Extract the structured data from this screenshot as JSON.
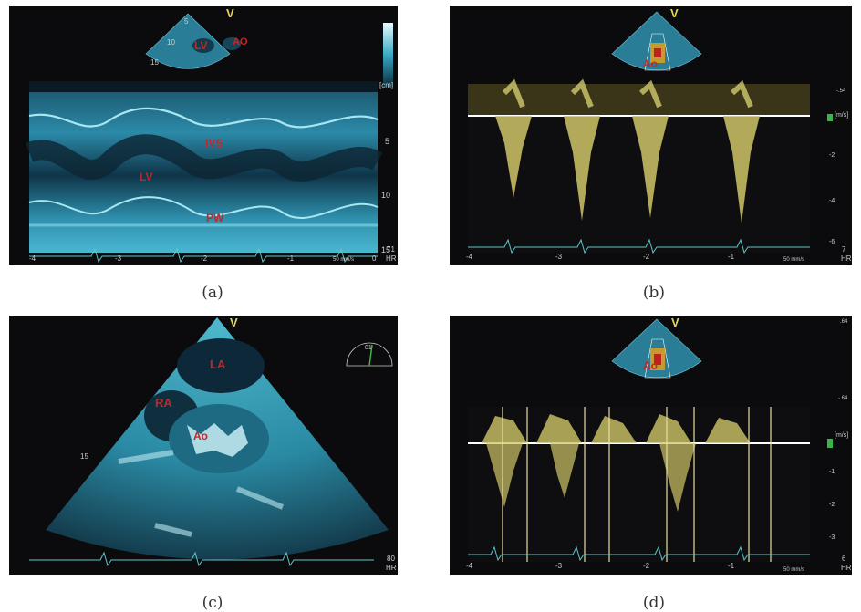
{
  "panels": {
    "a": {
      "caption": "(a)",
      "probe_mark": "V",
      "sector_labels": {
        "lv": "LV",
        "ao": "AO"
      },
      "sector_depth": [
        "5",
        "10",
        "15"
      ],
      "unit": "[cm]",
      "labels": {
        "ivs": "IVS",
        "lv": "LV",
        "pw": "PW"
      },
      "depth_ticks": [
        "5",
        "10",
        "15"
      ],
      "time_ticks": [
        "-4",
        "-3",
        "-2",
        "-1",
        "0"
      ],
      "heart_rate": "71",
      "hr_label": "HR",
      "sweep": "50 mm/s"
    },
    "b": {
      "caption": "(b)",
      "probe_mark": "V",
      "sector_labels": {
        "ao": "Ao"
      },
      "unit": "[m/s]",
      "velocity_ticks": [
        "-2",
        "-4",
        "-6"
      ],
      "time_ticks": [
        "-4",
        "-3",
        "-2",
        "-1"
      ],
      "heart_rate": "7",
      "hr_label": "HR",
      "sweep": "50 mm/s",
      "scale_top": "",
      "scale_bottom": "-.54"
    },
    "c": {
      "caption": "(c)",
      "probe_mark": "V",
      "labels": {
        "la": "LA",
        "ra": "RA",
        "ao": "Ao"
      },
      "depth_tick": "15",
      "angle": "81",
      "heart_rate": "80",
      "hr_label": "HR"
    },
    "d": {
      "caption": "(d)",
      "probe_mark": "V",
      "sector_labels": {
        "ao": "Ao"
      },
      "unit": "[m/s]",
      "velocity_ticks": [
        "-1",
        "-2",
        "-3"
      ],
      "time_ticks": [
        "-4",
        "-3",
        "-2",
        "-1"
      ],
      "heart_rate": "6",
      "hr_label": "HR",
      "sweep": "50 mm/s",
      "scale_top": ".64",
      "scale_bottom": "-.64"
    }
  },
  "colors": {
    "background": "#0b0b0d",
    "tissue": "#3aa8c4",
    "doppler": "#e8e07a",
    "label": "#c0282a",
    "ecg": "#5fc8c8"
  }
}
